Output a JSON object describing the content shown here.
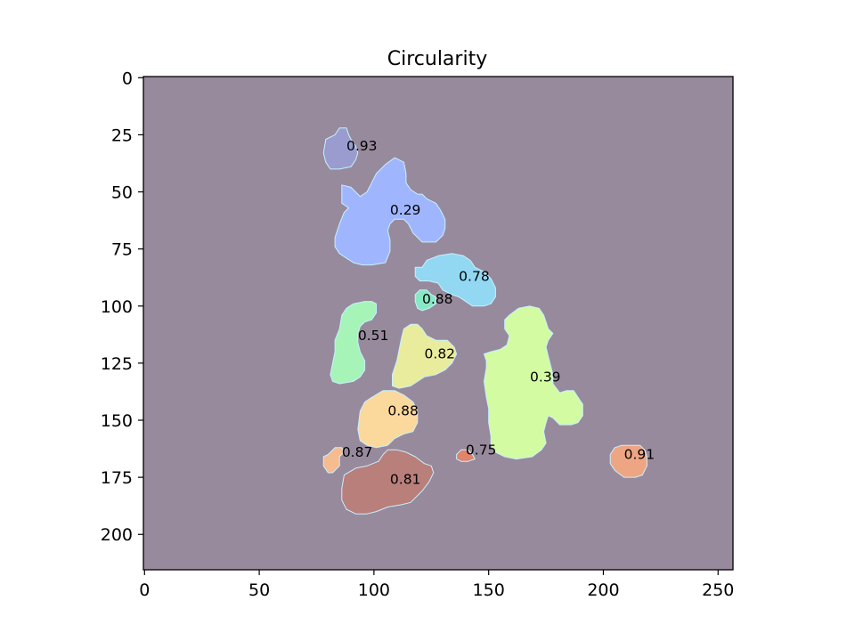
{
  "chart_data": {
    "type": "heatmap",
    "title": "Circularity",
    "xlabel": "",
    "ylabel": "",
    "xlim": [
      0,
      256
    ],
    "ylim": [
      215,
      0
    ],
    "x_ticks": [
      "0",
      "50",
      "100",
      "150",
      "200",
      "250"
    ],
    "y_ticks": [
      "0",
      "25",
      "50",
      "75",
      "100",
      "125",
      "150",
      "175",
      "200"
    ],
    "background_color": "#978a9c",
    "regions": [
      {
        "label": "0.93",
        "value": 0.93,
        "color": "#9a9ccf",
        "x": 88,
        "y": 30,
        "outline": [
          [
            79,
            27
          ],
          [
            83,
            25
          ],
          [
            85,
            22
          ],
          [
            88,
            22
          ],
          [
            89,
            25
          ],
          [
            90,
            27
          ],
          [
            92,
            30
          ],
          [
            93,
            33
          ],
          [
            92,
            36
          ],
          [
            90,
            39
          ],
          [
            85,
            40
          ],
          [
            81,
            40
          ],
          [
            79,
            37
          ],
          [
            78,
            33
          ]
        ]
      },
      {
        "label": "0.29",
        "value": 0.29,
        "color": "#9fb6ff",
        "x": 107,
        "y": 58,
        "outline": [
          [
            86,
            47
          ],
          [
            90,
            48
          ],
          [
            94,
            52
          ],
          [
            97,
            50
          ],
          [
            99,
            46
          ],
          [
            101,
            42
          ],
          [
            105,
            38
          ],
          [
            109,
            35
          ],
          [
            113,
            37
          ],
          [
            114,
            42
          ],
          [
            114,
            46
          ],
          [
            116,
            49
          ],
          [
            119,
            51
          ],
          [
            121,
            51
          ],
          [
            123,
            53
          ],
          [
            125,
            54
          ],
          [
            127,
            55
          ],
          [
            129,
            58
          ],
          [
            131,
            62
          ],
          [
            131,
            66
          ],
          [
            130,
            69
          ],
          [
            127,
            72
          ],
          [
            121,
            72
          ],
          [
            117,
            68
          ],
          [
            115,
            64
          ],
          [
            113,
            62
          ],
          [
            109,
            62
          ],
          [
            107,
            64
          ],
          [
            106,
            67
          ],
          [
            107,
            71
          ],
          [
            107,
            76
          ],
          [
            105,
            81
          ],
          [
            99,
            82
          ],
          [
            95,
            82
          ],
          [
            91,
            81
          ],
          [
            88,
            79
          ],
          [
            85,
            77
          ],
          [
            83,
            74
          ],
          [
            83,
            70
          ],
          [
            85,
            64
          ],
          [
            87,
            59
          ],
          [
            89,
            57
          ],
          [
            86,
            55
          ],
          [
            86,
            51
          ]
        ]
      },
      {
        "label": "0.78",
        "value": 0.78,
        "color": "#92d8f2",
        "x": 137,
        "y": 87,
        "outline": [
          [
            118,
            83
          ],
          [
            121,
            83
          ],
          [
            123,
            80
          ],
          [
            128,
            78
          ],
          [
            134,
            77
          ],
          [
            139,
            78
          ],
          [
            142,
            80
          ],
          [
            144,
            83
          ],
          [
            148,
            85
          ],
          [
            151,
            88
          ],
          [
            153,
            92
          ],
          [
            153,
            96
          ],
          [
            151,
            99
          ],
          [
            148,
            100
          ],
          [
            143,
            100
          ],
          [
            140,
            98
          ],
          [
            137,
            96
          ],
          [
            134,
            95
          ],
          [
            130,
            93
          ],
          [
            128,
            90
          ],
          [
            124,
            89
          ],
          [
            120,
            89
          ],
          [
            118,
            87
          ]
        ]
      },
      {
        "label": "0.88",
        "value": 0.88,
        "color": "#88e8c4",
        "x": 121,
        "y": 97,
        "outline": [
          [
            118,
            95
          ],
          [
            120,
            93
          ],
          [
            123,
            93
          ],
          [
            125,
            95
          ],
          [
            127,
            96
          ],
          [
            127,
            99
          ],
          [
            124,
            101
          ],
          [
            121,
            102
          ],
          [
            119,
            101
          ],
          [
            118,
            98
          ]
        ]
      },
      {
        "label": "0.51",
        "value": 0.51,
        "color": "#a6f4b8",
        "x": 93,
        "y": 113,
        "outline": [
          [
            86,
            104
          ],
          [
            88,
            101
          ],
          [
            91,
            99
          ],
          [
            96,
            98
          ],
          [
            99,
            98
          ],
          [
            101,
            99
          ],
          [
            101,
            103
          ],
          [
            99,
            106
          ],
          [
            96,
            107
          ],
          [
            94,
            109
          ],
          [
            93,
            112
          ],
          [
            93,
            116
          ],
          [
            94,
            120
          ],
          [
            96,
            124
          ],
          [
            96,
            128
          ],
          [
            94,
            131
          ],
          [
            91,
            133
          ],
          [
            85,
            134
          ],
          [
            82,
            133
          ],
          [
            81,
            130
          ],
          [
            82,
            125
          ],
          [
            83,
            120
          ],
          [
            83,
            115
          ],
          [
            85,
            110
          ]
        ]
      },
      {
        "label": "0.82",
        "value": 0.82,
        "color": "#e9ec9c",
        "x": 122,
        "y": 121,
        "outline": [
          [
            113,
            110
          ],
          [
            116,
            108
          ],
          [
            119,
            108
          ],
          [
            121,
            110
          ],
          [
            123,
            113
          ],
          [
            127,
            115
          ],
          [
            132,
            115
          ],
          [
            135,
            118
          ],
          [
            136,
            121
          ],
          [
            134,
            125
          ],
          [
            131,
            128
          ],
          [
            127,
            130
          ],
          [
            122,
            131
          ],
          [
            116,
            135
          ],
          [
            111,
            136
          ],
          [
            108,
            135
          ],
          [
            108,
            130
          ],
          [
            110,
            124
          ],
          [
            111,
            119
          ],
          [
            112,
            114
          ]
        ]
      },
      {
        "label": "0.39",
        "value": 0.39,
        "color": "#d3fba2",
        "x": 168,
        "y": 131,
        "outline": [
          [
            159,
            104
          ],
          [
            163,
            101
          ],
          [
            168,
            100
          ],
          [
            172,
            101
          ],
          [
            174,
            104
          ],
          [
            175,
            107
          ],
          [
            176,
            110
          ],
          [
            178,
            112
          ],
          [
            176,
            115
          ],
          [
            175,
            118
          ],
          [
            176,
            122
          ],
          [
            177,
            126
          ],
          [
            178,
            130
          ],
          [
            178,
            134
          ],
          [
            181,
            138
          ],
          [
            184,
            137
          ],
          [
            187,
            137
          ],
          [
            189,
            140
          ],
          [
            191,
            143
          ],
          [
            191,
            148
          ],
          [
            189,
            151
          ],
          [
            186,
            152
          ],
          [
            181,
            152
          ],
          [
            178,
            149
          ],
          [
            176,
            148
          ],
          [
            175,
            151
          ],
          [
            174,
            155
          ],
          [
            175,
            160
          ],
          [
            173,
            163
          ],
          [
            169,
            166
          ],
          [
            162,
            167
          ],
          [
            157,
            166
          ],
          [
            153,
            164
          ],
          [
            151,
            161
          ],
          [
            151,
            157
          ],
          [
            150,
            151
          ],
          [
            150,
            145
          ],
          [
            149,
            140
          ],
          [
            148,
            133
          ],
          [
            149,
            127
          ],
          [
            149,
            124
          ],
          [
            148,
            121
          ],
          [
            151,
            120
          ],
          [
            155,
            119
          ],
          [
            158,
            117
          ],
          [
            159,
            113
          ],
          [
            157,
            110
          ],
          [
            157,
            106
          ]
        ]
      },
      {
        "label": "0.88",
        "value": 0.88,
        "color": "#fbd89c",
        "x": 106,
        "y": 146,
        "outline": [
          [
            94,
            146
          ],
          [
            96,
            142
          ],
          [
            99,
            140
          ],
          [
            104,
            137
          ],
          [
            109,
            137
          ],
          [
            113,
            139
          ],
          [
            117,
            142
          ],
          [
            119,
            146
          ],
          [
            119,
            151
          ],
          [
            117,
            155
          ],
          [
            113,
            156
          ],
          [
            109,
            158
          ],
          [
            106,
            161
          ],
          [
            101,
            162
          ],
          [
            97,
            161
          ],
          [
            94,
            159
          ],
          [
            93,
            154
          ]
        ]
      },
      {
        "label": "0.87",
        "value": 0.87,
        "color": "#f6bb8e",
        "x": 86,
        "y": 164,
        "outline": [
          [
            78,
            166
          ],
          [
            80,
            165
          ],
          [
            83,
            162
          ],
          [
            86,
            162
          ],
          [
            87,
            164
          ],
          [
            85,
            166
          ],
          [
            85,
            170
          ],
          [
            82,
            173
          ],
          [
            80,
            173
          ],
          [
            78,
            170
          ]
        ]
      },
      {
        "label": "0.75",
        "value": 0.75,
        "color": "#e0846c",
        "x": 140,
        "y": 163,
        "outline": [
          [
            136,
            165
          ],
          [
            138,
            163
          ],
          [
            141,
            163
          ],
          [
            143,
            165
          ],
          [
            144,
            167
          ],
          [
            141,
            168
          ],
          [
            138,
            168
          ],
          [
            136,
            167
          ]
        ]
      },
      {
        "label": "0.91",
        "value": 0.91,
        "color": "#eea584",
        "x": 209,
        "y": 165,
        "outline": [
          [
            203,
            165
          ],
          [
            205,
            162
          ],
          [
            208,
            161
          ],
          [
            216,
            161
          ],
          [
            218,
            163
          ],
          [
            219,
            166
          ],
          [
            219,
            170
          ],
          [
            217,
            174
          ],
          [
            214,
            175
          ],
          [
            209,
            175
          ],
          [
            205,
            172
          ],
          [
            203,
            169
          ]
        ]
      },
      {
        "label": "0.81",
        "value": 0.81,
        "color": "#b97f7b",
        "x": 107,
        "y": 176,
        "outline": [
          [
            87,
            174
          ],
          [
            92,
            171
          ],
          [
            97,
            170
          ],
          [
            102,
            168
          ],
          [
            104,
            165
          ],
          [
            106,
            163
          ],
          [
            110,
            163
          ],
          [
            114,
            164
          ],
          [
            118,
            166
          ],
          [
            122,
            169
          ],
          [
            125,
            170
          ],
          [
            126,
            173
          ],
          [
            124,
            177
          ],
          [
            121,
            181
          ],
          [
            118,
            184
          ],
          [
            116,
            186
          ],
          [
            112,
            187
          ],
          [
            106,
            188
          ],
          [
            101,
            190
          ],
          [
            97,
            191
          ],
          [
            92,
            191
          ],
          [
            88,
            189
          ],
          [
            86,
            185
          ],
          [
            86,
            180
          ]
        ]
      }
    ]
  }
}
